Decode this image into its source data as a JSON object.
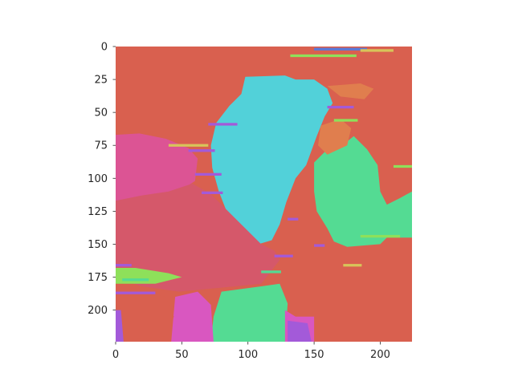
{
  "chart_data": {
    "type": "heatmap",
    "title": "",
    "xlabel": "",
    "ylabel": "",
    "xlim": [
      0,
      224
    ],
    "ylim": [
      224,
      0
    ],
    "x_ticks": [
      {
        "value": 0,
        "label": "0"
      },
      {
        "value": 50,
        "label": "50"
      },
      {
        "value": 100,
        "label": "100"
      },
      {
        "value": 150,
        "label": "150"
      },
      {
        "value": 200,
        "label": "200"
      }
    ],
    "y_ticks": [
      {
        "value": 0,
        "label": "0"
      },
      {
        "value": 25,
        "label": "25"
      },
      {
        "value": 50,
        "label": "50"
      },
      {
        "value": 75,
        "label": "75"
      },
      {
        "value": 100,
        "label": "100"
      },
      {
        "value": 125,
        "label": "125"
      },
      {
        "value": 150,
        "label": "150"
      },
      {
        "value": 175,
        "label": "175"
      },
      {
        "value": 200,
        "label": "200"
      }
    ],
    "grid": false,
    "colors": {
      "background": "#d9604f",
      "cyan": "#52d1d9",
      "pink": "#dc5494",
      "crimson": "#d5586a",
      "mint": "#54db93",
      "green_light": "#8ee05a",
      "magenta": "#d957c0",
      "purple": "#a35ad9",
      "orange": "#e07e4e",
      "yellow": "#d7c45a",
      "blue": "#5a79d9"
    },
    "regions": [
      {
        "color": "cyan",
        "polygon": [
          [
            98,
            23
          ],
          [
            128,
            22
          ],
          [
            136,
            25
          ],
          [
            150,
            25
          ],
          [
            160,
            32
          ],
          [
            164,
            43
          ],
          [
            158,
            53
          ],
          [
            152,
            68
          ],
          [
            144,
            90
          ],
          [
            136,
            100
          ],
          [
            129,
            118
          ],
          [
            124,
            135
          ],
          [
            118,
            147
          ],
          [
            108,
            150
          ],
          [
            98,
            142
          ],
          [
            85,
            128
          ],
          [
            78,
            110
          ],
          [
            73,
            92
          ],
          [
            72,
            75
          ],
          [
            76,
            58
          ],
          [
            86,
            45
          ],
          [
            95,
            36
          ]
        ]
      },
      {
        "color": "pink",
        "polygon": [
          [
            0,
            67
          ],
          [
            18,
            66
          ],
          [
            38,
            70
          ],
          [
            55,
            77
          ],
          [
            62,
            85
          ],
          [
            60,
            102
          ],
          [
            48,
            110
          ],
          [
            28,
            113
          ],
          [
            10,
            116
          ],
          [
            0,
            117
          ]
        ]
      },
      {
        "color": "crimson",
        "polygon": [
          [
            0,
            117
          ],
          [
            20,
            113
          ],
          [
            40,
            110
          ],
          [
            58,
            104
          ],
          [
            72,
            112
          ],
          [
            90,
            130
          ],
          [
            110,
            150
          ],
          [
            120,
            155
          ],
          [
            124,
            162
          ],
          [
            110,
            180
          ],
          [
            80,
            183
          ],
          [
            48,
            186
          ],
          [
            20,
            182
          ],
          [
            0,
            176
          ]
        ]
      },
      {
        "color": "mint",
        "polygon": [
          [
            150,
            88
          ],
          [
            158,
            80
          ],
          [
            170,
            76
          ],
          [
            180,
            68
          ],
          [
            190,
            78
          ],
          [
            198,
            90
          ],
          [
            200,
            110
          ],
          [
            205,
            120
          ],
          [
            215,
            115
          ],
          [
            224,
            110
          ],
          [
            224,
            145
          ],
          [
            205,
            145
          ],
          [
            200,
            150
          ],
          [
            175,
            152
          ],
          [
            165,
            148
          ],
          [
            160,
            138
          ],
          [
            152,
            125
          ],
          [
            150,
            110
          ]
        ]
      },
      {
        "color": "mint",
        "polygon": [
          [
            80,
            186
          ],
          [
            110,
            182
          ],
          [
            124,
            180
          ],
          [
            130,
            195
          ],
          [
            128,
            224
          ],
          [
            72,
            224
          ],
          [
            74,
            205
          ]
        ]
      },
      {
        "color": "magenta",
        "polygon": [
          [
            45,
            190
          ],
          [
            62,
            186
          ],
          [
            72,
            196
          ],
          [
            74,
            224
          ],
          [
            42,
            224
          ]
        ]
      },
      {
        "color": "magenta",
        "polygon": [
          [
            128,
            200
          ],
          [
            136,
            205
          ],
          [
            150,
            205
          ],
          [
            150,
            224
          ],
          [
            128,
            224
          ]
        ]
      },
      {
        "color": "purple",
        "polygon": [
          [
            130,
            208
          ],
          [
            145,
            210
          ],
          [
            148,
            224
          ],
          [
            130,
            224
          ]
        ]
      },
      {
        "color": "green_light",
        "polygon": [
          [
            0,
            168
          ],
          [
            15,
            168
          ],
          [
            40,
            172
          ],
          [
            50,
            175
          ],
          [
            30,
            180
          ],
          [
            0,
            180
          ]
        ]
      },
      {
        "color": "orange",
        "polygon": [
          [
            155,
            60
          ],
          [
            170,
            55
          ],
          [
            178,
            62
          ],
          [
            175,
            75
          ],
          [
            160,
            82
          ],
          [
            153,
            75
          ]
        ]
      },
      {
        "color": "orange",
        "polygon": [
          [
            160,
            30
          ],
          [
            185,
            28
          ],
          [
            195,
            32
          ],
          [
            188,
            40
          ],
          [
            170,
            38
          ]
        ]
      },
      {
        "color": "background",
        "polygon": [
          [
            2,
            190
          ],
          [
            20,
            186
          ],
          [
            38,
            190
          ],
          [
            44,
            205
          ],
          [
            38,
            220
          ],
          [
            15,
            222
          ],
          [
            4,
            212
          ]
        ]
      },
      {
        "color": "purple",
        "polygon": [
          [
            0,
            200
          ],
          [
            4,
            200
          ],
          [
            6,
            224
          ],
          [
            0,
            224
          ]
        ]
      }
    ],
    "speckles": [
      {
        "color": "green_light",
        "x": 132,
        "y": 6,
        "w": 50,
        "h": 2
      },
      {
        "color": "blue",
        "x": 150,
        "y": 1,
        "w": 40,
        "h": 2
      },
      {
        "color": "yellow",
        "x": 185,
        "y": 2,
        "w": 25,
        "h": 2
      },
      {
        "color": "purple",
        "x": 70,
        "y": 58,
        "w": 22,
        "h": 2
      },
      {
        "color": "yellow",
        "x": 40,
        "y": 74,
        "w": 30,
        "h": 2
      },
      {
        "color": "purple",
        "x": 55,
        "y": 78,
        "w": 20,
        "h": 2
      },
      {
        "color": "purple",
        "x": 60,
        "y": 96,
        "w": 20,
        "h": 2
      },
      {
        "color": "purple",
        "x": 65,
        "y": 110,
        "w": 16,
        "h": 2
      },
      {
        "color": "green_light",
        "x": 165,
        "y": 55,
        "w": 18,
        "h": 2
      },
      {
        "color": "purple",
        "x": 160,
        "y": 45,
        "w": 20,
        "h": 2
      },
      {
        "color": "green_light",
        "x": 185,
        "y": 143,
        "w": 30,
        "h": 2
      },
      {
        "color": "purple",
        "x": 120,
        "y": 158,
        "w": 14,
        "h": 2
      },
      {
        "color": "mint",
        "x": 110,
        "y": 170,
        "w": 15,
        "h": 2
      },
      {
        "color": "purple",
        "x": 0,
        "y": 165,
        "w": 12,
        "h": 2
      },
      {
        "color": "purple",
        "x": 0,
        "y": 186,
        "w": 30,
        "h": 2
      },
      {
        "color": "mint",
        "x": 5,
        "y": 176,
        "w": 20,
        "h": 2
      },
      {
        "color": "purple",
        "x": 130,
        "y": 130,
        "w": 8,
        "h": 2
      },
      {
        "color": "yellow",
        "x": 172,
        "y": 165,
        "w": 14,
        "h": 2
      },
      {
        "color": "purple",
        "x": 150,
        "y": 150,
        "w": 8,
        "h": 2
      },
      {
        "color": "green_light",
        "x": 210,
        "y": 90,
        "w": 14,
        "h": 2
      }
    ]
  }
}
